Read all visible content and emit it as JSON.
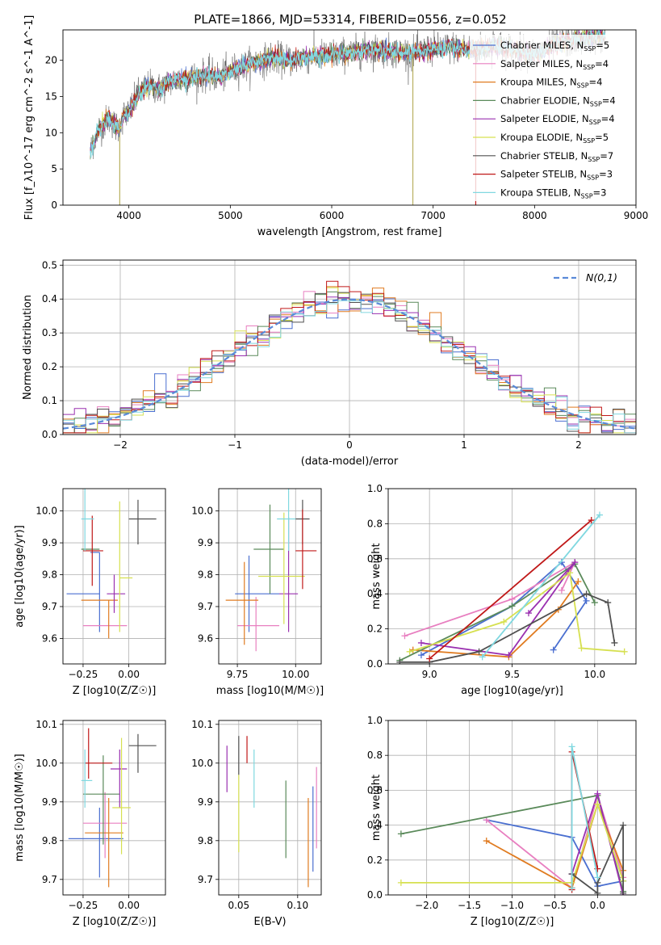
{
  "title": "PLATE=1866, MJD=53314, FIBERID=0556, z=0.052",
  "colors": [
    "#4a6fd0",
    "#e87fc0",
    "#e07b20",
    "#5a8a5a",
    "#9a30b0",
    "#d6e050",
    "#505050",
    "#c01818",
    "#80d8e0"
  ],
  "legend_series": [
    {
      "name": "Chabrier MILES",
      "nssp": "5"
    },
    {
      "name": "Salpeter MILES",
      "nssp": "4"
    },
    {
      "name": "Kroupa MILES",
      "nssp": "4"
    },
    {
      "name": "Chabrier ELODIE",
      "nssp": "4"
    },
    {
      "name": "Salpeter ELODIE",
      "nssp": "4"
    },
    {
      "name": "Kroupa ELODIE",
      "nssp": "5"
    },
    {
      "name": "Chabrier STELIB",
      "nssp": "7"
    },
    {
      "name": "Salpeter STELIB",
      "nssp": "3"
    },
    {
      "name": "Kroupa STELIB",
      "nssp": "3"
    }
  ],
  "chart_data": [
    {
      "id": "spectrum",
      "type": "line",
      "xlabel": "wavelength [Angstrom, rest frame]",
      "ylabel": "Flux [f_λ10^-17 erg cm^-2 s^-1 A^-1]",
      "xlim": [
        3350,
        9000
      ],
      "ylim": [
        0,
        24.2
      ],
      "xticks": [
        4000,
        5000,
        6000,
        7000,
        8000,
        9000
      ],
      "yticks": [
        0,
        5,
        10,
        15,
        20
      ],
      "legend_position": "right",
      "data_continuum": {
        "x": [
          3620,
          3700,
          3800,
          3900,
          3950,
          4000,
          4100,
          4200,
          4300,
          4400,
          4500,
          4600,
          4700,
          4800,
          4900,
          5000,
          5200,
          5400,
          5600,
          5800,
          6000,
          6200,
          6400,
          6600,
          6800,
          7000,
          7200,
          7400,
          7600,
          7800,
          8000,
          8200,
          8400,
          8600,
          8700
        ],
        "y": [
          7.5,
          10.5,
          12.0,
          10.5,
          12.5,
          12.8,
          15.5,
          16.5,
          16.0,
          17.0,
          17.3,
          17.6,
          17.8,
          18.0,
          17.7,
          18.5,
          19.5,
          20.3,
          20.0,
          20.5,
          20.8,
          21.0,
          21.5,
          21.2,
          21.0,
          21.6,
          21.8,
          21.4,
          22.0,
          21.5,
          20.8,
          22.2,
          22.8,
          23.2,
          23.5
        ]
      },
      "spikes": [
        {
          "x": 3910,
          "ymin": 0,
          "ymax": 12
        },
        {
          "x": 6800,
          "ymin": 0,
          "ymax": 21
        },
        {
          "x": 7420,
          "ymin": 0,
          "ymax": 21.5
        }
      ]
    },
    {
      "id": "residual-histogram",
      "type": "histogram",
      "xlabel": "(data-model)/error",
      "ylabel": "Normed distribution",
      "xlim": [
        -2.5,
        2.5
      ],
      "ylim": [
        0,
        0.515
      ],
      "xticks": [
        -2,
        -1,
        0,
        1,
        2
      ],
      "yticks": [
        0.0,
        0.1,
        0.2,
        0.3,
        0.4,
        0.5
      ],
      "bin_width": 0.1,
      "reference_curve": "N(0,1)",
      "legend_position": "top-right"
    },
    {
      "id": "age-vs-Z",
      "type": "scatter",
      "xlabel": "Z [log10(Z/Z☉)]",
      "ylabel": "age [log10(age/yr)]",
      "xlim": [
        -0.36,
        0.2
      ],
      "ylim": [
        9.52,
        10.07
      ],
      "xticks": [
        -0.25,
        0.0
      ],
      "yticks": [
        9.6,
        9.7,
        9.8,
        9.9,
        10.0
      ],
      "points": [
        {
          "x": -0.16,
          "y": 9.87,
          "xerr": [
            0.05,
            0.0
          ],
          "yerr": [
            0.25,
            0.0
          ],
          "series": 0
        },
        {
          "x": -0.24,
          "y": 9.74,
          "xerr": [
            0.1,
            0.08
          ],
          "yerr": [
            0.0,
            0.0
          ],
          "series": 0
        },
        {
          "x": -0.14,
          "y": 9.64,
          "xerr": [
            0.11,
            0.13
          ],
          "yerr": [
            0.0,
            0.0
          ],
          "series": 1
        },
        {
          "x": -0.11,
          "y": 9.72,
          "xerr": [
            0.15,
            0.05
          ],
          "yerr": [
            0.12,
            0.0
          ],
          "series": 2
        },
        {
          "x": -0.24,
          "y": 9.88,
          "xerr": [
            0.02,
            0.08
          ],
          "yerr": [
            0.0,
            0.0
          ],
          "series": 3
        },
        {
          "x": -0.08,
          "y": 9.74,
          "xerr": [
            0.04,
            0.06
          ],
          "yerr": [
            0.06,
            0.06
          ],
          "series": 4
        },
        {
          "x": -0.05,
          "y": 9.79,
          "xerr": [
            0.0,
            0.07
          ],
          "yerr": [
            0.17,
            0.24
          ],
          "series": 5
        },
        {
          "x": 0.05,
          "y": 9.975,
          "xerr": [
            0.05,
            0.1
          ],
          "yerr": [
            0.08,
            0.06
          ],
          "series": 6
        },
        {
          "x": -0.2,
          "y": 9.875,
          "xerr": [
            0.05,
            0.06
          ],
          "yerr": [
            0.11,
            0.11
          ],
          "series": 7
        },
        {
          "x": -0.24,
          "y": 9.975,
          "xerr": [
            0.02,
            0.05
          ],
          "yerr": [
            0.1,
            0.1
          ],
          "series": 8
        }
      ]
    },
    {
      "id": "age-vs-mass",
      "type": "scatter",
      "xlabel": "mass [log10(M/M☉)]",
      "ylabel": "",
      "xlim": [
        9.67,
        10.11
      ],
      "ylim": [
        9.52,
        10.07
      ],
      "xticks": [
        9.75,
        10.0
      ],
      "yticks": [
        9.6,
        9.7,
        9.8,
        9.9,
        10.0
      ],
      "points": [
        {
          "x": 9.8,
          "y": 9.74,
          "xerr": [
            0.06,
            0.13
          ],
          "yerr": [
            0.12,
            0.12
          ],
          "series": 0
        },
        {
          "x": 9.83,
          "y": 9.64,
          "xerr": [
            0.08,
            0.1
          ],
          "yerr": [
            0.08,
            0.09
          ],
          "series": 1
        },
        {
          "x": 9.78,
          "y": 9.72,
          "xerr": [
            0.08,
            0.06
          ],
          "yerr": [
            0.14,
            0.12
          ],
          "series": 2
        },
        {
          "x": 9.89,
          "y": 9.88,
          "xerr": [
            0.07,
            0.06
          ],
          "yerr": [
            0.14,
            0.14
          ],
          "series": 3
        },
        {
          "x": 9.97,
          "y": 9.74,
          "xerr": [
            0.04,
            0.04
          ],
          "yerr": [
            0.12,
            0.24
          ],
          "series": 4
        },
        {
          "x": 9.95,
          "y": 9.795,
          "xerr": [
            0.11,
            0.09
          ],
          "yerr": [
            0.15,
            0.2
          ],
          "series": 5
        },
        {
          "x": 10.03,
          "y": 9.975,
          "xerr": [
            0.03,
            0.03
          ],
          "yerr": [
            0.08,
            0.06
          ],
          "series": 6
        },
        {
          "x": 10.03,
          "y": 9.875,
          "xerr": [
            0.03,
            0.06
          ],
          "yerr": [
            0.12,
            0.13
          ],
          "series": 7
        },
        {
          "x": 9.97,
          "y": 9.975,
          "xerr": [
            0.05,
            0.03
          ],
          "yerr": [
            0.1,
            0.12
          ],
          "series": 8
        }
      ]
    },
    {
      "id": "mass-weight-vs-age",
      "type": "line",
      "xlabel": "age [log10(age/yr)]",
      "ylabel": "mass weight",
      "xlim": [
        8.75,
        10.25
      ],
      "ylim": [
        0,
        1.0
      ],
      "xticks": [
        9.0,
        9.5,
        10.0
      ],
      "yticks": [
        0.0,
        0.2,
        0.4,
        0.6,
        0.8,
        1.0
      ],
      "series": [
        {
          "series": 0,
          "x": [
            8.95,
            9.5,
            9.8,
            9.95,
            9.75
          ],
          "y": [
            0.05,
            0.33,
            0.58,
            0.36,
            0.08
          ]
        },
        {
          "series": 1,
          "x": [
            8.85,
            9.5,
            9.88,
            9.8
          ],
          "y": [
            0.16,
            0.37,
            0.58,
            0.42
          ]
        },
        {
          "series": 2,
          "x": [
            8.9,
            9.48,
            9.78,
            9.9
          ],
          "y": [
            0.08,
            0.04,
            0.31,
            0.47
          ]
        },
        {
          "series": 3,
          "x": [
            8.82,
            9.5,
            9.88,
            10.0
          ],
          "y": [
            0.02,
            0.33,
            0.57,
            0.35
          ]
        },
        {
          "series": 4,
          "x": [
            8.95,
            9.48,
            9.88,
            9.6
          ],
          "y": [
            0.12,
            0.05,
            0.58,
            0.29
          ]
        },
        {
          "series": 5,
          "x": [
            8.88,
            9.45,
            9.85,
            9.92,
            10.18
          ],
          "y": [
            0.07,
            0.24,
            0.52,
            0.09,
            0.07
          ]
        },
        {
          "series": 6,
          "x": [
            8.82,
            9.0,
            9.3,
            9.95,
            10.08,
            10.12
          ],
          "y": [
            0.01,
            0.01,
            0.07,
            0.4,
            0.35,
            0.12
          ]
        },
        {
          "series": 7,
          "x": [
            9.0,
            9.98
          ],
          "y": [
            0.03,
            0.82
          ]
        },
        {
          "series": 8,
          "x": [
            9.32,
            10.03
          ],
          "y": [
            0.04,
            0.85
          ]
        }
      ]
    },
    {
      "id": "mass-vs-Z",
      "type": "scatter",
      "xlabel": "Z [log10(Z/Z☉)]",
      "ylabel": "mass [log10(M/M☉)]",
      "xlim": [
        -0.36,
        0.2
      ],
      "ylim": [
        9.66,
        10.11
      ],
      "xticks": [
        -0.25,
        0.0
      ],
      "yticks": [
        9.7,
        9.8,
        9.9,
        10.0,
        10.1
      ],
      "points": [
        {
          "x": -0.16,
          "y": 9.805,
          "xerr": [
            0.17,
            0.13
          ],
          "yerr": [
            0.1,
            0.08
          ],
          "series": 0
        },
        {
          "x": -0.13,
          "y": 9.845,
          "xerr": [
            0.12,
            0.12
          ],
          "yerr": [
            0.09,
            0.08
          ],
          "series": 1
        },
        {
          "x": -0.11,
          "y": 9.82,
          "xerr": [
            0.13,
            0.08
          ],
          "yerr": [
            0.14,
            0.09
          ],
          "series": 2
        },
        {
          "x": -0.14,
          "y": 9.92,
          "xerr": [
            0.11,
            0.09
          ],
          "yerr": [
            0.13,
            0.1
          ],
          "series": 3
        },
        {
          "x": -0.05,
          "y": 9.985,
          "xerr": [
            0.05,
            0.04
          ],
          "yerr": [
            0.1,
            0.05
          ],
          "series": 4
        },
        {
          "x": -0.04,
          "y": 9.885,
          "xerr": [
            0.05,
            0.05
          ],
          "yerr": [
            0.12,
            0.18
          ],
          "series": 5
        },
        {
          "x": 0.05,
          "y": 10.045,
          "xerr": [
            0.05,
            0.1
          ],
          "yerr": [
            0.07,
            0.03
          ],
          "series": 6
        },
        {
          "x": -0.22,
          "y": 10.0,
          "xerr": [
            0.02,
            0.13
          ],
          "yerr": [
            0.04,
            0.09
          ],
          "series": 7
        },
        {
          "x": -0.24,
          "y": 9.955,
          "xerr": [
            0.02,
            0.04
          ],
          "yerr": [
            0.07,
            0.08
          ],
          "series": 8
        }
      ]
    },
    {
      "id": "mass-vs-EBV",
      "type": "scatter",
      "xlabel": "E(B-V)",
      "ylabel": "",
      "xlim": [
        0.033,
        0.12
      ],
      "ylim": [
        9.66,
        10.11
      ],
      "xticks": [
        0.05,
        0.1
      ],
      "yticks": [
        9.7,
        9.8,
        9.9,
        10.0,
        10.1
      ],
      "points": [
        {
          "x": 0.113,
          "y": 9.83,
          "xerr": [
            0,
            0
          ],
          "yerr": [
            0.11,
            0.11
          ],
          "series": 0
        },
        {
          "x": 0.116,
          "y": 9.87,
          "xerr": [
            0,
            0
          ],
          "yerr": [
            0.09,
            0.12
          ],
          "series": 1
        },
        {
          "x": 0.109,
          "y": 9.8,
          "xerr": [
            0,
            0
          ],
          "yerr": [
            0.12,
            0.11
          ],
          "series": 2
        },
        {
          "x": 0.09,
          "y": 9.855,
          "xerr": [
            0,
            0
          ],
          "yerr": [
            0.1,
            0.1
          ],
          "series": 3
        },
        {
          "x": 0.04,
          "y": 9.985,
          "xerr": [
            0,
            0
          ],
          "yerr": [
            0.06,
            0.06
          ],
          "series": 4
        },
        {
          "x": 0.05,
          "y": 9.87,
          "xerr": [
            0,
            0
          ],
          "yerr": [
            0.1,
            0.1
          ],
          "series": 5
        },
        {
          "x": 0.05,
          "y": 10.02,
          "xerr": [
            0,
            0
          ],
          "yerr": [
            0.05,
            0.05
          ],
          "series": 6
        },
        {
          "x": 0.057,
          "y": 10.035,
          "xerr": [
            0,
            0
          ],
          "yerr": [
            0.035,
            0.035
          ],
          "series": 7
        },
        {
          "x": 0.063,
          "y": 9.96,
          "xerr": [
            0,
            0
          ],
          "yerr": [
            0.075,
            0.075
          ],
          "series": 8
        }
      ]
    },
    {
      "id": "mass-weight-vs-Z",
      "type": "line",
      "xlabel": "Z [log10(Z/Z☉)]",
      "ylabel": "mass weight",
      "xlim": [
        -2.45,
        0.45
      ],
      "ylim": [
        0,
        1.0
      ],
      "xticks": [
        -2.0,
        -1.5,
        -1.0,
        -0.5,
        0.0
      ],
      "yticks": [
        0.0,
        0.2,
        0.4,
        0.6,
        0.8,
        1.0
      ],
      "series": [
        {
          "series": 0,
          "x": [
            -1.3,
            -0.3,
            0.0,
            0.3
          ],
          "y": [
            0.43,
            0.33,
            0.05,
            0.08
          ]
        },
        {
          "series": 1,
          "x": [
            -1.3,
            -0.3,
            0.0,
            0.3
          ],
          "y": [
            0.43,
            0.04,
            0.57,
            0.1
          ]
        },
        {
          "series": 2,
          "x": [
            -1.3,
            -0.3,
            0.0,
            0.3
          ],
          "y": [
            0.31,
            0.04,
            0.52,
            0.14
          ]
        },
        {
          "series": 3,
          "x": [
            -2.3,
            0.0,
            0.3
          ],
          "y": [
            0.35,
            0.57,
            0.02
          ]
        },
        {
          "series": 4,
          "x": [
            -0.3,
            0.0,
            0.3
          ],
          "y": [
            0.12,
            0.58,
            0.0
          ]
        },
        {
          "series": 5,
          "x": [
            -2.3,
            -0.3,
            0.0,
            0.3
          ],
          "y": [
            0.07,
            0.07,
            0.52,
            0.08
          ]
        },
        {
          "series": 6,
          "x": [
            -0.3,
            0.0,
            0.0,
            0.3,
            0.3
          ],
          "y": [
            0.12,
            0.01,
            0.07,
            0.4,
            0.01
          ]
        },
        {
          "series": 7,
          "x": [
            -0.3,
            -0.3,
            0.0
          ],
          "y": [
            0.03,
            0.82,
            0.15
          ]
        },
        {
          "series": 8,
          "x": [
            -0.3,
            -0.3,
            0.0
          ],
          "y": [
            0.04,
            0.85,
            0.1
          ]
        }
      ]
    }
  ]
}
